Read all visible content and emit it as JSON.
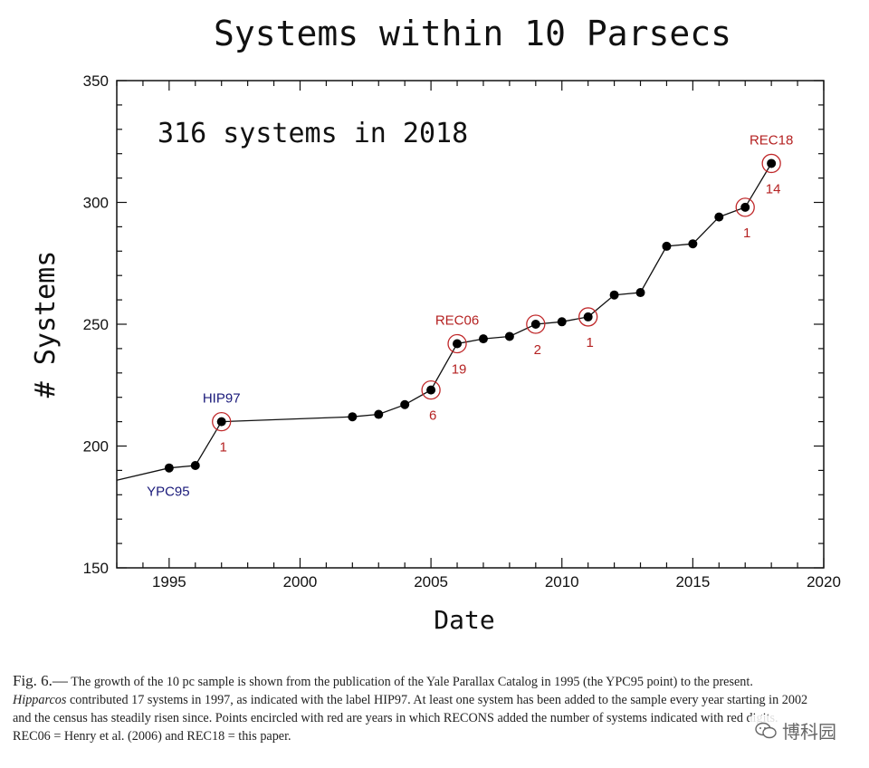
{
  "chart_data": {
    "type": "line",
    "title": "Systems within 10 Parsecs",
    "xlabel": "Date",
    "ylabel": "# Systems",
    "xlim": [
      1993,
      2020
    ],
    "ylim": [
      150,
      350
    ],
    "xticks": [
      1995,
      2000,
      2005,
      2010,
      2015,
      2020
    ],
    "yticks": [
      150,
      200,
      250,
      300,
      350
    ],
    "annotation": "316 systems in 2018",
    "line_start": {
      "x": 1993,
      "y": 186
    },
    "points": [
      {
        "x": 1995,
        "y": 191,
        "circled": false
      },
      {
        "x": 1996,
        "y": 192,
        "circled": false
      },
      {
        "x": 1997,
        "y": 210,
        "circled": true
      },
      {
        "x": 2002,
        "y": 212,
        "circled": false
      },
      {
        "x": 2003,
        "y": 213,
        "circled": false
      },
      {
        "x": 2004,
        "y": 217,
        "circled": false
      },
      {
        "x": 2005,
        "y": 223,
        "circled": true
      },
      {
        "x": 2006,
        "y": 242,
        "circled": true
      },
      {
        "x": 2007,
        "y": 244,
        "circled": false
      },
      {
        "x": 2008,
        "y": 245,
        "circled": false
      },
      {
        "x": 2009,
        "y": 250,
        "circled": true
      },
      {
        "x": 2010,
        "y": 251,
        "circled": false
      },
      {
        "x": 2011,
        "y": 253,
        "circled": true
      },
      {
        "x": 2012,
        "y": 262,
        "circled": false
      },
      {
        "x": 2013,
        "y": 263,
        "circled": false
      },
      {
        "x": 2014,
        "y": 282,
        "circled": false
      },
      {
        "x": 2015,
        "y": 283,
        "circled": false
      },
      {
        "x": 2016,
        "y": 294,
        "circled": false
      },
      {
        "x": 2017,
        "y": 298,
        "circled": true
      },
      {
        "x": 2018,
        "y": 316,
        "circled": true
      }
    ],
    "recons_counts": [
      {
        "x": 1997,
        "label": "1"
      },
      {
        "x": 2005,
        "label": "6"
      },
      {
        "x": 2006,
        "label": "19"
      },
      {
        "x": 2009,
        "label": "2"
      },
      {
        "x": 2011,
        "label": "1"
      },
      {
        "x": 2017,
        "label": "1"
      },
      {
        "x": 2018,
        "label": "14"
      }
    ],
    "point_labels": [
      {
        "x": 1995,
        "text": "YPC95",
        "color": "#1a1a7a",
        "where": "below"
      },
      {
        "x": 1997,
        "text": "HIP97",
        "color": "#1a1a7a",
        "where": "above"
      },
      {
        "x": 2006,
        "text": "REC06",
        "color": "#b52222",
        "where": "above"
      },
      {
        "x": 2018,
        "text": "REC18",
        "color": "#b52222",
        "where": "above"
      }
    ],
    "colors": {
      "line": "#111111",
      "marker": "#000000",
      "circle": "#c0282a",
      "count": "#b52222"
    }
  },
  "caption": {
    "fig_label": "Fig. 6.—",
    "part1": "The growth of the 10 pc sample is shown from the publication of the Yale Parallax Catalog in 1995 (the YPC95 point) to the present.",
    "italic": "Hipparcos",
    "part2": "contributed 17 systems in 1997, as indicated with the label HIP97. At least one system has been added to the sample every year starting in 2002 and the census has steadily risen since. Points encircled with red are years in which RECONS added the number of systems indicated with red digits. REC06 = Henry et al. (2006) and REC18 = this paper."
  },
  "watermark": {
    "text": "博科园",
    "icon": "wechat-icon"
  }
}
